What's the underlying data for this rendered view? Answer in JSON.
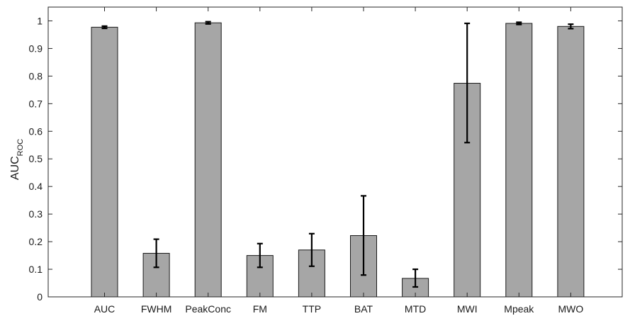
{
  "chart_data": {
    "type": "bar",
    "title": "",
    "xlabel": "",
    "ylabel": "AUC",
    "ylabel_subscript": "ROC",
    "ylim": [
      0,
      1.05
    ],
    "yticks": [
      0,
      0.1,
      0.2,
      0.3,
      0.4,
      0.5,
      0.6,
      0.7,
      0.8,
      0.9,
      1
    ],
    "ytick_labels": [
      "0",
      "0.1",
      "0.2",
      "0.3",
      "0.4",
      "0.5",
      "0.6",
      "0.7",
      "0.8",
      "0.9",
      "1"
    ],
    "grid": false,
    "categories": [
      "AUC",
      "FWHM",
      "PeakConc",
      "FM",
      "TTP",
      "BAT",
      "MTD",
      "MWI",
      "Mpeak",
      "MWO"
    ],
    "values": [
      0.977,
      0.158,
      0.993,
      0.15,
      0.17,
      0.222,
      0.067,
      0.774,
      0.991,
      0.98
    ],
    "error_low": [
      0.973,
      0.107,
      0.989,
      0.107,
      0.111,
      0.079,
      0.036,
      0.559,
      0.987,
      0.972
    ],
    "error_high": [
      0.981,
      0.209,
      0.997,
      0.193,
      0.229,
      0.366,
      0.1,
      0.991,
      0.995,
      0.988
    ],
    "colors": {
      "bar_fill": "#a6a6a6",
      "bar_stroke": "#1a1a1a",
      "error_bar": "#000000",
      "axis": "#262626"
    }
  }
}
